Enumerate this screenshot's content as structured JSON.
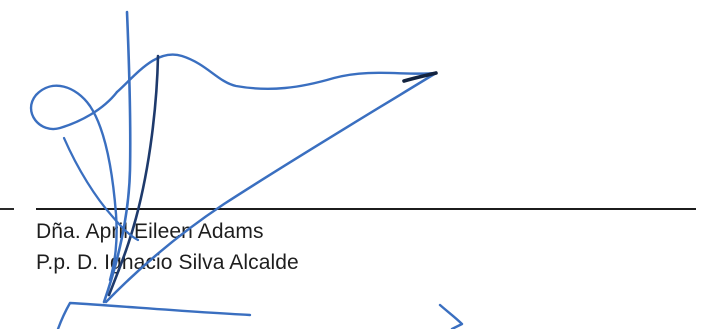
{
  "signature": {
    "signer_name": "Dña. April Eileen Adams",
    "signer_proxy": "P.p. D. Ignacio Silva Alcalde",
    "ink_color": "#2f64b4"
  }
}
